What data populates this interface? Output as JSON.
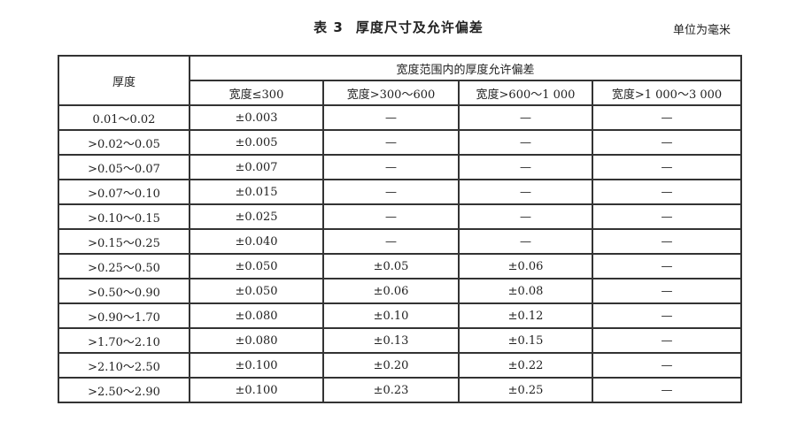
{
  "title": {
    "number": "表 3",
    "text": "厚度尺寸及允许偏差"
  },
  "unit": "单位为毫米",
  "table": {
    "thickness_header": "厚度",
    "group_header": "宽度范围内的厚度允许偏差",
    "width_headers": [
      "宽度≤300",
      "宽度>300～600",
      "宽度>600～1 000",
      "宽度>1 000～3 000"
    ],
    "rows": [
      [
        "0.01～0.02",
        "±0.003",
        "—",
        "—",
        "—"
      ],
      [
        ">0.02～0.05",
        "±0.005",
        "—",
        "—",
        "—"
      ],
      [
        ">0.05～0.07",
        "±0.007",
        "—",
        "—",
        "—"
      ],
      [
        ">0.07～0.10",
        "±0.015",
        "—",
        "—",
        "—"
      ],
      [
        ">0.10～0.15",
        "±0.025",
        "—",
        "—",
        "—"
      ],
      [
        ">0.15～0.25",
        "±0.040",
        "—",
        "—",
        "—"
      ],
      [
        ">0.25～0.50",
        "±0.050",
        "±0.05",
        "±0.06",
        "—"
      ],
      [
        ">0.50～0.90",
        "±0.050",
        "±0.06",
        "±0.08",
        "—"
      ],
      [
        ">0.90～1.70",
        "±0.080",
        "±0.10",
        "±0.12",
        "—"
      ],
      [
        ">1.70～2.10",
        "±0.080",
        "±0.13",
        "±0.15",
        "—"
      ],
      [
        ">2.10～2.50",
        "±0.100",
        "±0.20",
        "±0.22",
        "—"
      ],
      [
        ">2.50～2.90",
        "±0.100",
        "±0.23",
        "±0.25",
        "—"
      ]
    ]
  }
}
